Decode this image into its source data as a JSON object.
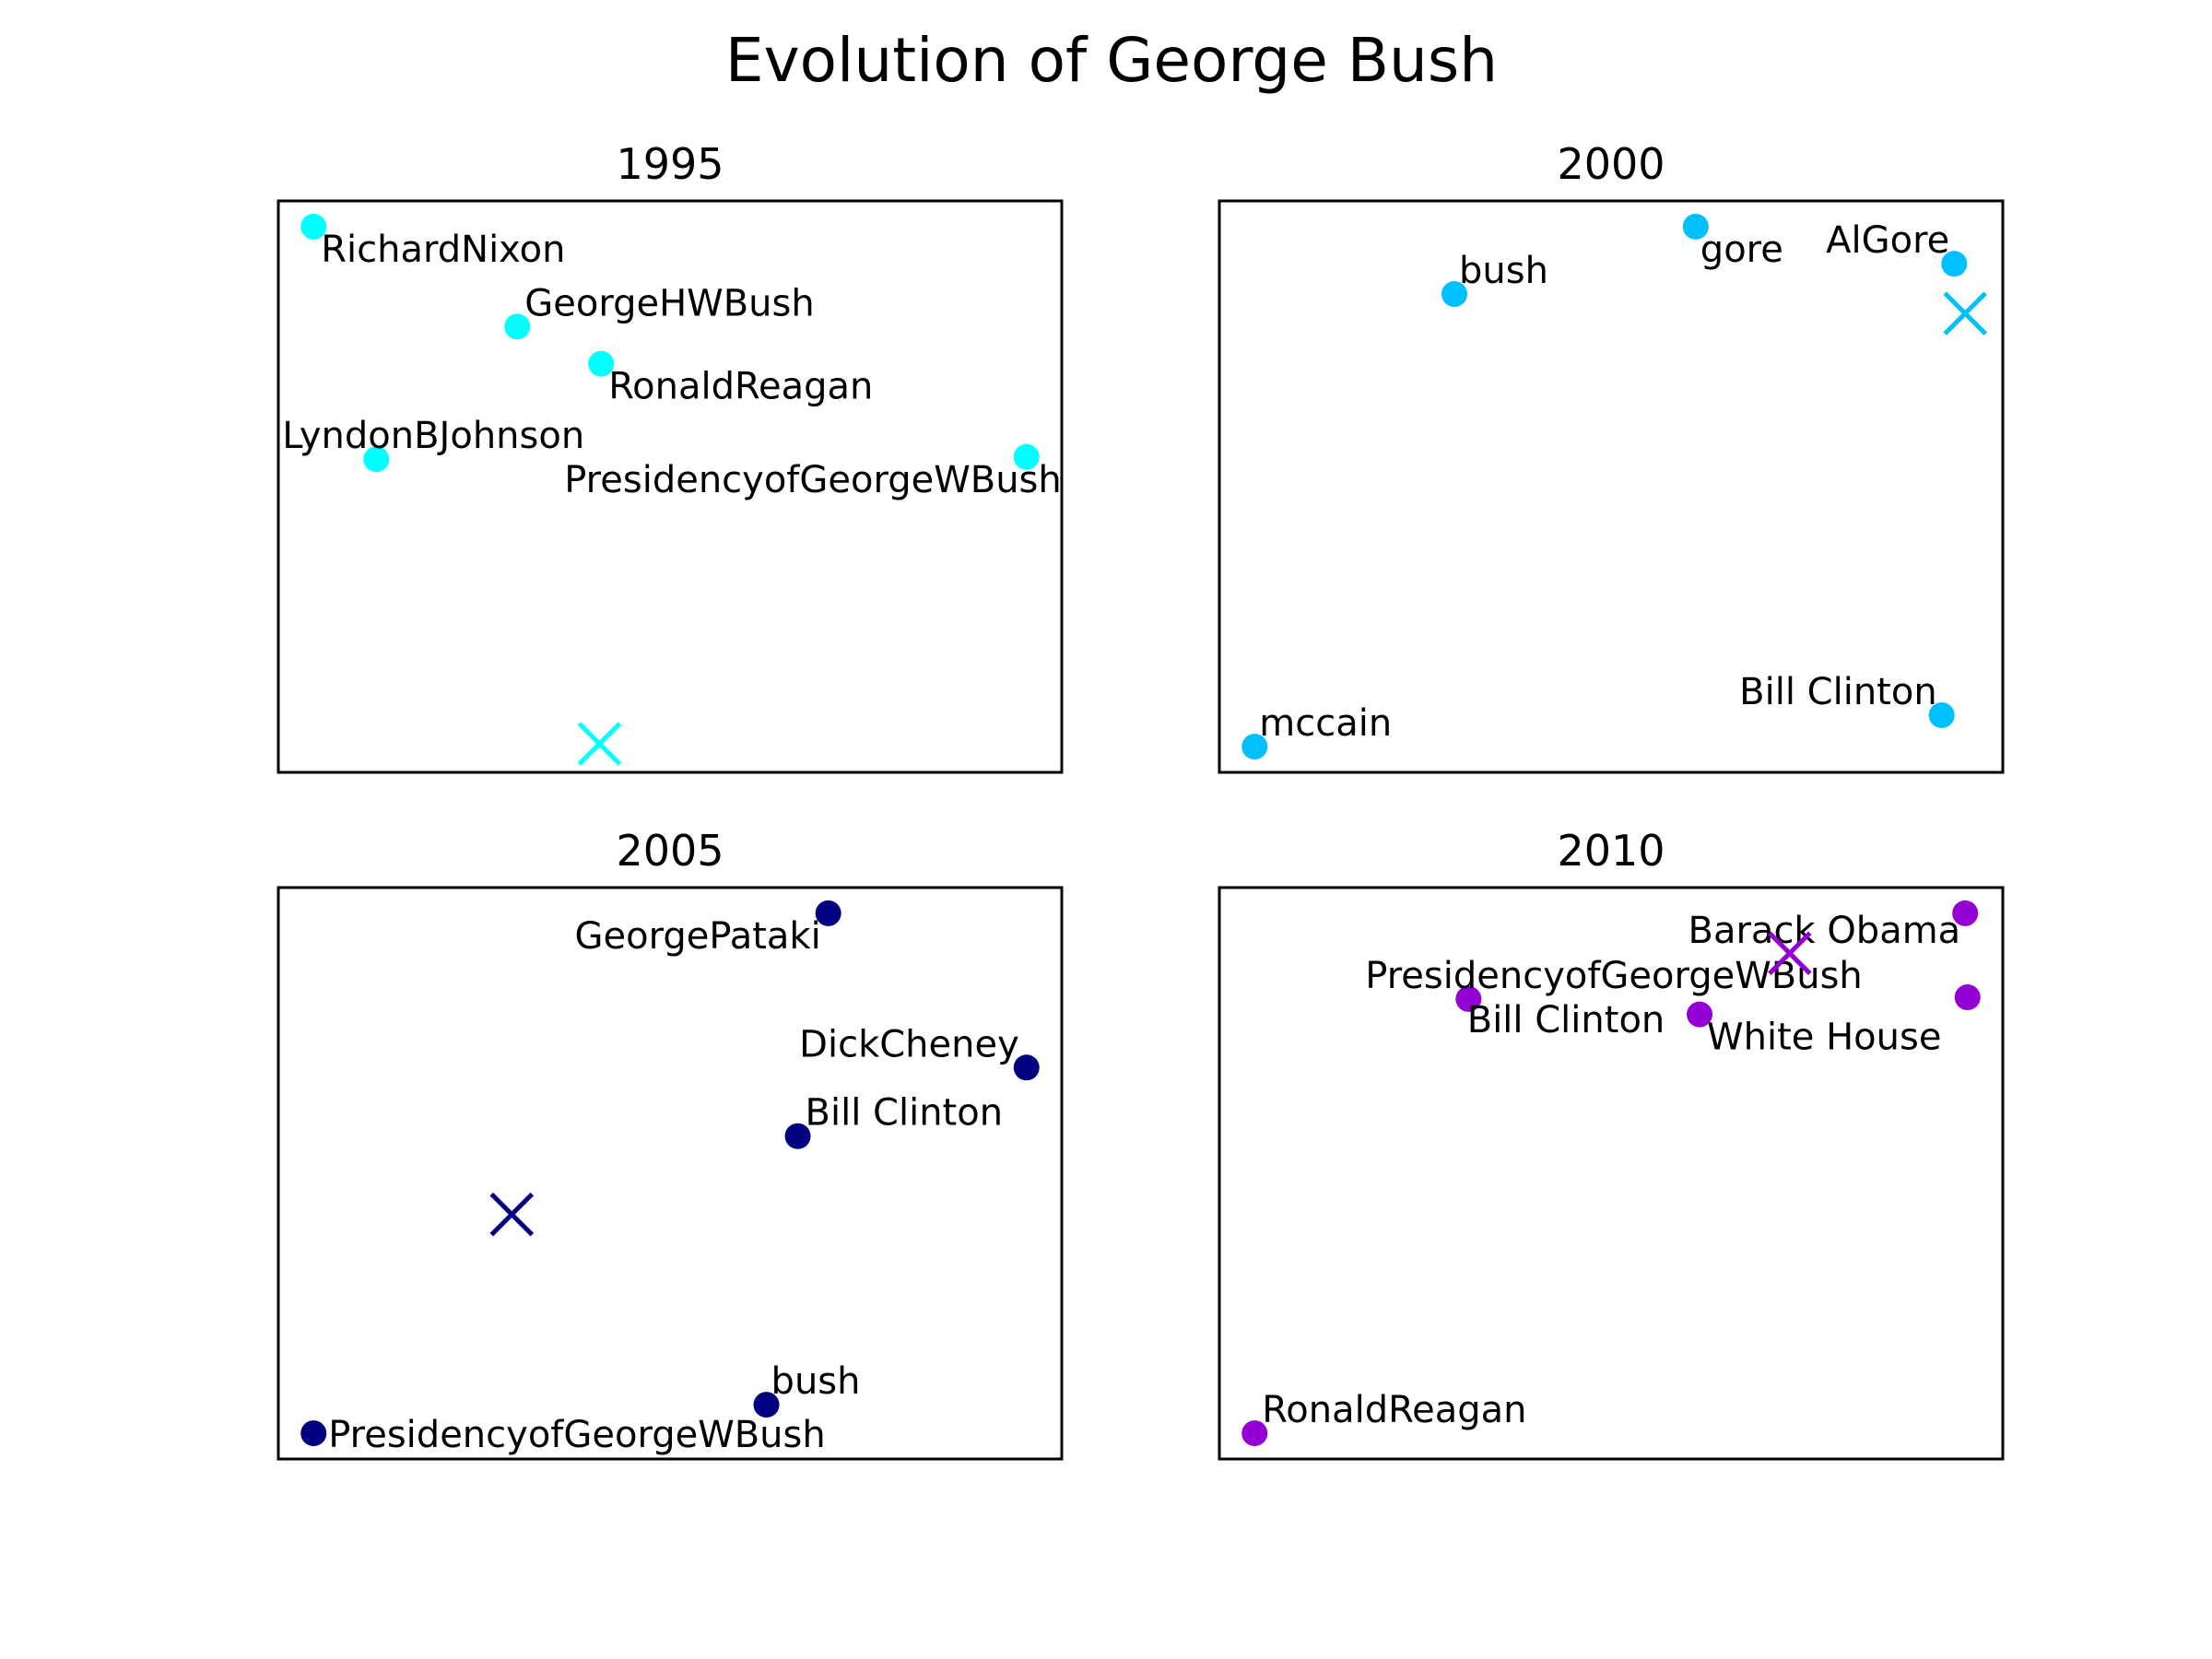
{
  "chart_data": {
    "title": "Evolution of George Bush",
    "panels": [
      {
        "type": "scatter",
        "title": "1995",
        "color": "#00ffff",
        "grid": false,
        "axes_visible": false,
        "target": {
          "marker": "x",
          "pos": [
            0.41,
            0.05
          ]
        },
        "points": [
          {
            "label": "RichardNixon",
            "pos": [
              0.045,
              0.955
            ]
          },
          {
            "label": "GeorgeHWBush",
            "pos": [
              0.305,
              0.78
            ]
          },
          {
            "label": "RonaldReagan",
            "pos": [
              0.412,
              0.715
            ]
          },
          {
            "label": "LyndonBJohnson",
            "pos": [
              0.125,
              0.548
            ]
          },
          {
            "label": "PresidencyofGeorgeWBush",
            "pos": [
              0.955,
              0.552
            ]
          }
        ]
      },
      {
        "type": "scatter",
        "title": "2000",
        "color": "#00bfff",
        "grid": false,
        "axes_visible": false,
        "target": {
          "marker": "x",
          "pos": [
            0.952,
            0.803
          ]
        },
        "points": [
          {
            "label": "bush",
            "pos": [
              0.3,
              0.837
            ]
          },
          {
            "label": "gore",
            "pos": [
              0.608,
              0.955
            ]
          },
          {
            "label": "AlGore",
            "pos": [
              0.938,
              0.89
            ]
          },
          {
            "label": "Bill Clinton",
            "pos": [
              0.922,
              0.1
            ]
          },
          {
            "label": "mccain",
            "pos": [
              0.045,
              0.045
            ]
          }
        ]
      },
      {
        "type": "scatter",
        "title": "2005",
        "color": "#000080",
        "grid": false,
        "axes_visible": false,
        "target": {
          "marker": "x",
          "pos": [
            0.298,
            0.428
          ]
        },
        "points": [
          {
            "label": "GeorgePataki",
            "pos": [
              0.702,
              0.955
            ]
          },
          {
            "label": "DickCheney",
            "pos": [
              0.955,
              0.685
            ]
          },
          {
            "label": "Bill Clinton",
            "pos": [
              0.663,
              0.565
            ]
          },
          {
            "label": "bush",
            "pos": [
              0.623,
              0.095
            ]
          },
          {
            "label": "PresidencyofGeorgeWBush",
            "pos": [
              0.045,
              0.045
            ]
          }
        ]
      },
      {
        "type": "scatter",
        "title": "2010",
        "color": "#9400d3",
        "grid": false,
        "axes_visible": false,
        "target": {
          "marker": "x",
          "pos": [
            0.728,
            0.885
          ]
        },
        "points": [
          {
            "label": "Barack Obama",
            "pos": [
              0.952,
              0.955
            ]
          },
          {
            "label": "PresidencyofGeorgeWBush",
            "pos": [
              0.318,
              0.805
            ]
          },
          {
            "label": "Bill Clinton",
            "pos": [
              0.955,
              0.808
            ]
          },
          {
            "label": "White House",
            "pos": [
              0.613,
              0.778
            ]
          },
          {
            "label": "RonaldReagan",
            "pos": [
              0.045,
              0.045
            ]
          }
        ]
      }
    ]
  }
}
